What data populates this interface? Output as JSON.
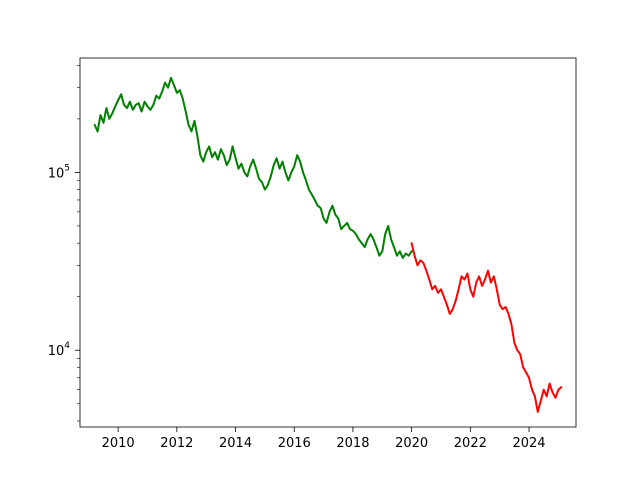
{
  "chart_data": {
    "type": "line",
    "title": "",
    "xlabel": "",
    "ylabel": "",
    "y_scale": "log",
    "xlim": [
      2008.7,
      2025.6
    ],
    "ylim": [
      3700,
      440000
    ],
    "grid": false,
    "legend": false,
    "x_ticks": [
      2010,
      2012,
      2014,
      2016,
      2018,
      2020,
      2022,
      2024
    ],
    "x_tick_labels": [
      "2010",
      "2012",
      "2014",
      "2016",
      "2018",
      "2020",
      "2022",
      "2024"
    ],
    "y_major_ticks": [
      10000,
      100000
    ],
    "y_tick_labels": [
      {
        "base": "10",
        "exponent": "4"
      },
      {
        "base": "10",
        "exponent": "5"
      }
    ],
    "y_minor_ticks": [
      4000,
      5000,
      6000,
      7000,
      8000,
      9000,
      20000,
      30000,
      40000,
      50000,
      60000,
      70000,
      80000,
      90000,
      200000,
      300000,
      400000
    ],
    "series": [
      {
        "color": "#008000",
        "points": [
          [
            2009.2,
            185000
          ],
          [
            2009.3,
            170000
          ],
          [
            2009.4,
            210000
          ],
          [
            2009.5,
            190000
          ],
          [
            2009.6,
            230000
          ],
          [
            2009.7,
            200000
          ],
          [
            2009.8,
            215000
          ],
          [
            2009.9,
            235000
          ],
          [
            2010.0,
            255000
          ],
          [
            2010.1,
            275000
          ],
          [
            2010.2,
            240000
          ],
          [
            2010.3,
            230000
          ],
          [
            2010.4,
            250000
          ],
          [
            2010.5,
            225000
          ],
          [
            2010.6,
            240000
          ],
          [
            2010.7,
            245000
          ],
          [
            2010.8,
            220000
          ],
          [
            2010.9,
            250000
          ],
          [
            2011.0,
            235000
          ],
          [
            2011.1,
            225000
          ],
          [
            2011.2,
            240000
          ],
          [
            2011.3,
            270000
          ],
          [
            2011.4,
            260000
          ],
          [
            2011.5,
            285000
          ],
          [
            2011.6,
            320000
          ],
          [
            2011.7,
            300000
          ],
          [
            2011.8,
            340000
          ],
          [
            2011.9,
            310000
          ],
          [
            2012.0,
            280000
          ],
          [
            2012.1,
            290000
          ],
          [
            2012.2,
            260000
          ],
          [
            2012.3,
            220000
          ],
          [
            2012.4,
            185000
          ],
          [
            2012.5,
            170000
          ],
          [
            2012.6,
            195000
          ],
          [
            2012.7,
            160000
          ],
          [
            2012.8,
            125000
          ],
          [
            2012.9,
            115000
          ],
          [
            2013.0,
            130000
          ],
          [
            2013.1,
            140000
          ],
          [
            2013.2,
            122000
          ],
          [
            2013.3,
            130000
          ],
          [
            2013.4,
            118000
          ],
          [
            2013.5,
            135000
          ],
          [
            2013.6,
            125000
          ],
          [
            2013.7,
            110000
          ],
          [
            2013.8,
            118000
          ],
          [
            2013.9,
            140000
          ],
          [
            2014.0,
            120000
          ],
          [
            2014.1,
            105000
          ],
          [
            2014.2,
            112000
          ],
          [
            2014.3,
            100000
          ],
          [
            2014.4,
            95000
          ],
          [
            2014.5,
            108000
          ],
          [
            2014.6,
            118000
          ],
          [
            2014.7,
            105000
          ],
          [
            2014.8,
            92000
          ],
          [
            2014.9,
            88000
          ],
          [
            2015.0,
            80000
          ],
          [
            2015.1,
            85000
          ],
          [
            2015.2,
            95000
          ],
          [
            2015.3,
            110000
          ],
          [
            2015.4,
            120000
          ],
          [
            2015.5,
            105000
          ],
          [
            2015.6,
            115000
          ],
          [
            2015.7,
            100000
          ],
          [
            2015.8,
            90000
          ],
          [
            2015.9,
            100000
          ],
          [
            2016.0,
            108000
          ],
          [
            2016.1,
            125000
          ],
          [
            2016.2,
            115000
          ],
          [
            2016.3,
            100000
          ],
          [
            2016.4,
            90000
          ],
          [
            2016.5,
            80000
          ],
          [
            2016.6,
            75000
          ],
          [
            2016.7,
            70000
          ],
          [
            2016.8,
            65000
          ],
          [
            2016.9,
            63000
          ],
          [
            2017.0,
            55000
          ],
          [
            2017.1,
            52000
          ],
          [
            2017.2,
            60000
          ],
          [
            2017.3,
            65000
          ],
          [
            2017.4,
            58000
          ],
          [
            2017.5,
            55000
          ],
          [
            2017.6,
            48000
          ],
          [
            2017.7,
            50000
          ],
          [
            2017.8,
            52000
          ],
          [
            2017.9,
            48000
          ],
          [
            2018.0,
            47000
          ],
          [
            2018.1,
            45000
          ],
          [
            2018.2,
            42000
          ],
          [
            2018.3,
            40000
          ],
          [
            2018.4,
            38000
          ],
          [
            2018.5,
            42000
          ],
          [
            2018.6,
            45000
          ],
          [
            2018.7,
            42000
          ],
          [
            2018.8,
            38000
          ],
          [
            2018.9,
            34000
          ],
          [
            2019.0,
            36000
          ],
          [
            2019.1,
            45000
          ],
          [
            2019.2,
            50000
          ],
          [
            2019.3,
            42000
          ],
          [
            2019.4,
            38000
          ],
          [
            2019.5,
            34000
          ],
          [
            2019.6,
            36000
          ],
          [
            2019.7,
            33000
          ],
          [
            2019.8,
            35000
          ],
          [
            2019.9,
            34000
          ],
          [
            2020.0,
            36000
          ]
        ]
      },
      {
        "color": "#ff0000",
        "points": [
          [
            2020.0,
            40000
          ],
          [
            2020.1,
            34000
          ],
          [
            2020.2,
            30000
          ],
          [
            2020.3,
            32000
          ],
          [
            2020.4,
            31000
          ],
          [
            2020.5,
            28000
          ],
          [
            2020.6,
            25000
          ],
          [
            2020.7,
            22000
          ],
          [
            2020.8,
            23000
          ],
          [
            2020.9,
            21000
          ],
          [
            2021.0,
            22000
          ],
          [
            2021.1,
            20000
          ],
          [
            2021.2,
            18000
          ],
          [
            2021.3,
            16000
          ],
          [
            2021.4,
            17000
          ],
          [
            2021.5,
            19000
          ],
          [
            2021.6,
            22000
          ],
          [
            2021.7,
            26000
          ],
          [
            2021.8,
            25000
          ],
          [
            2021.9,
            27000
          ],
          [
            2022.0,
            22000
          ],
          [
            2022.1,
            20000
          ],
          [
            2022.2,
            24000
          ],
          [
            2022.3,
            26000
          ],
          [
            2022.4,
            23000
          ],
          [
            2022.5,
            25000
          ],
          [
            2022.6,
            28000
          ],
          [
            2022.7,
            24000
          ],
          [
            2022.8,
            26000
          ],
          [
            2022.9,
            22000
          ],
          [
            2023.0,
            18000
          ],
          [
            2023.1,
            17000
          ],
          [
            2023.2,
            17500
          ],
          [
            2023.3,
            16000
          ],
          [
            2023.4,
            14000
          ],
          [
            2023.5,
            11000
          ],
          [
            2023.6,
            10000
          ],
          [
            2023.7,
            9500
          ],
          [
            2023.8,
            8000
          ],
          [
            2023.9,
            7500
          ],
          [
            2024.0,
            7000
          ],
          [
            2024.1,
            6000
          ],
          [
            2024.2,
            5500
          ],
          [
            2024.3,
            4500
          ],
          [
            2024.4,
            5200
          ],
          [
            2024.5,
            6000
          ],
          [
            2024.6,
            5500
          ],
          [
            2024.7,
            6500
          ],
          [
            2024.8,
            5800
          ],
          [
            2024.9,
            5400
          ],
          [
            2025.0,
            6000
          ],
          [
            2025.1,
            6200
          ]
        ]
      }
    ]
  }
}
